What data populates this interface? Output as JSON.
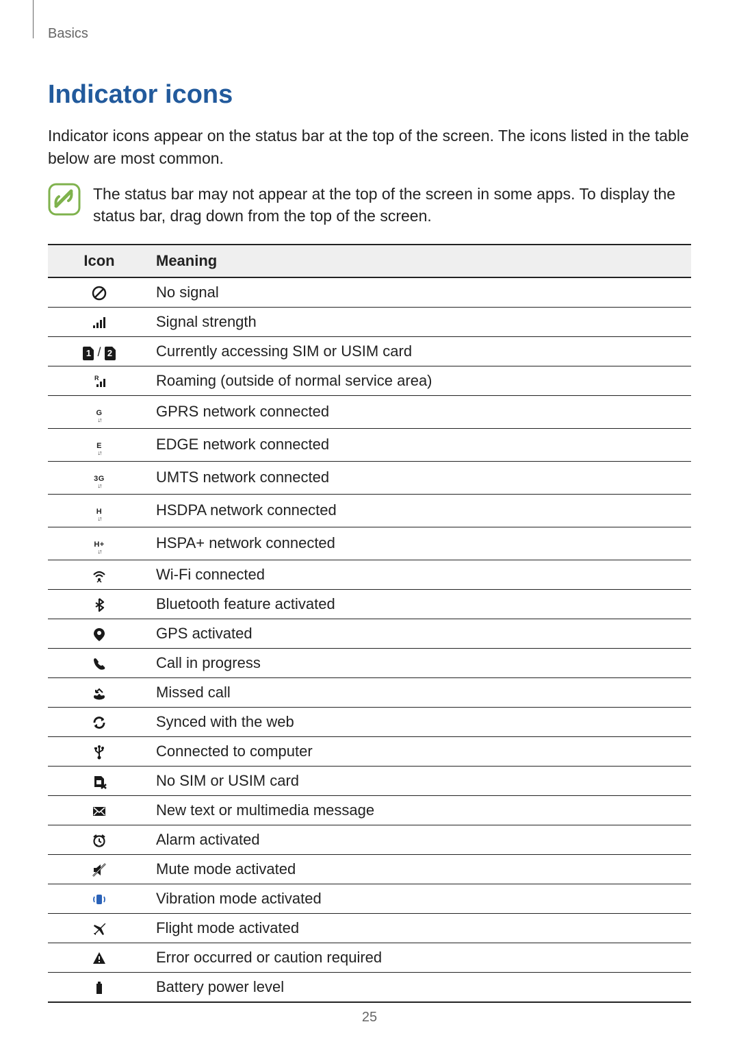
{
  "breadcrumb": "Basics",
  "section_title": "Indicator icons",
  "intro_text": "Indicator icons appear on the status bar at the top of the screen. The icons listed in the table below are most common.",
  "note_text": "The status bar may not appear at the top of the screen in some apps. To display the status bar, drag down from the top of the screen.",
  "page_number": "25",
  "table_headers": {
    "icon": "Icon",
    "meaning": "Meaning"
  },
  "colors": {
    "title": "#225a9c",
    "text": "#222222",
    "header_bg": "#efefef",
    "note_border": "#7fb24d",
    "vibration_icon": "#2a62b8"
  },
  "sim_sep": " / ",
  "sim_labels": {
    "one": "1",
    "two": "2"
  },
  "net_labels": {
    "g": "G",
    "e": "E",
    "g3": "3G",
    "h": "H",
    "hplus": "H+"
  },
  "rows": [
    {
      "icon": "no-signal",
      "meaning": "No signal"
    },
    {
      "icon": "signal",
      "meaning": "Signal strength"
    },
    {
      "icon": "sim",
      "meaning": "Currently accessing SIM or USIM card"
    },
    {
      "icon": "roaming",
      "meaning": "Roaming (outside of normal service area)"
    },
    {
      "icon": "gprs",
      "meaning": "GPRS network connected"
    },
    {
      "icon": "edge",
      "meaning": "EDGE network connected"
    },
    {
      "icon": "umts",
      "meaning": "UMTS network connected"
    },
    {
      "icon": "hsdpa",
      "meaning": "HSDPA network connected"
    },
    {
      "icon": "hspa",
      "meaning": "HSPA+ network connected"
    },
    {
      "icon": "wifi",
      "meaning": "Wi-Fi connected"
    },
    {
      "icon": "bluetooth",
      "meaning": "Bluetooth feature activated"
    },
    {
      "icon": "gps",
      "meaning": "GPS activated"
    },
    {
      "icon": "call",
      "meaning": "Call in progress"
    },
    {
      "icon": "missed",
      "meaning": "Missed call"
    },
    {
      "icon": "sync",
      "meaning": "Synced with the web"
    },
    {
      "icon": "usb",
      "meaning": "Connected to computer"
    },
    {
      "icon": "nosim",
      "meaning": "No SIM or USIM card"
    },
    {
      "icon": "message",
      "meaning": "New text or multimedia message"
    },
    {
      "icon": "alarm",
      "meaning": "Alarm activated"
    },
    {
      "icon": "mute",
      "meaning": "Mute mode activated"
    },
    {
      "icon": "vibrate",
      "meaning": "Vibration mode activated"
    },
    {
      "icon": "flight",
      "meaning": "Flight mode activated"
    },
    {
      "icon": "error",
      "meaning": "Error occurred or caution required"
    },
    {
      "icon": "battery",
      "meaning": "Battery power level"
    }
  ]
}
